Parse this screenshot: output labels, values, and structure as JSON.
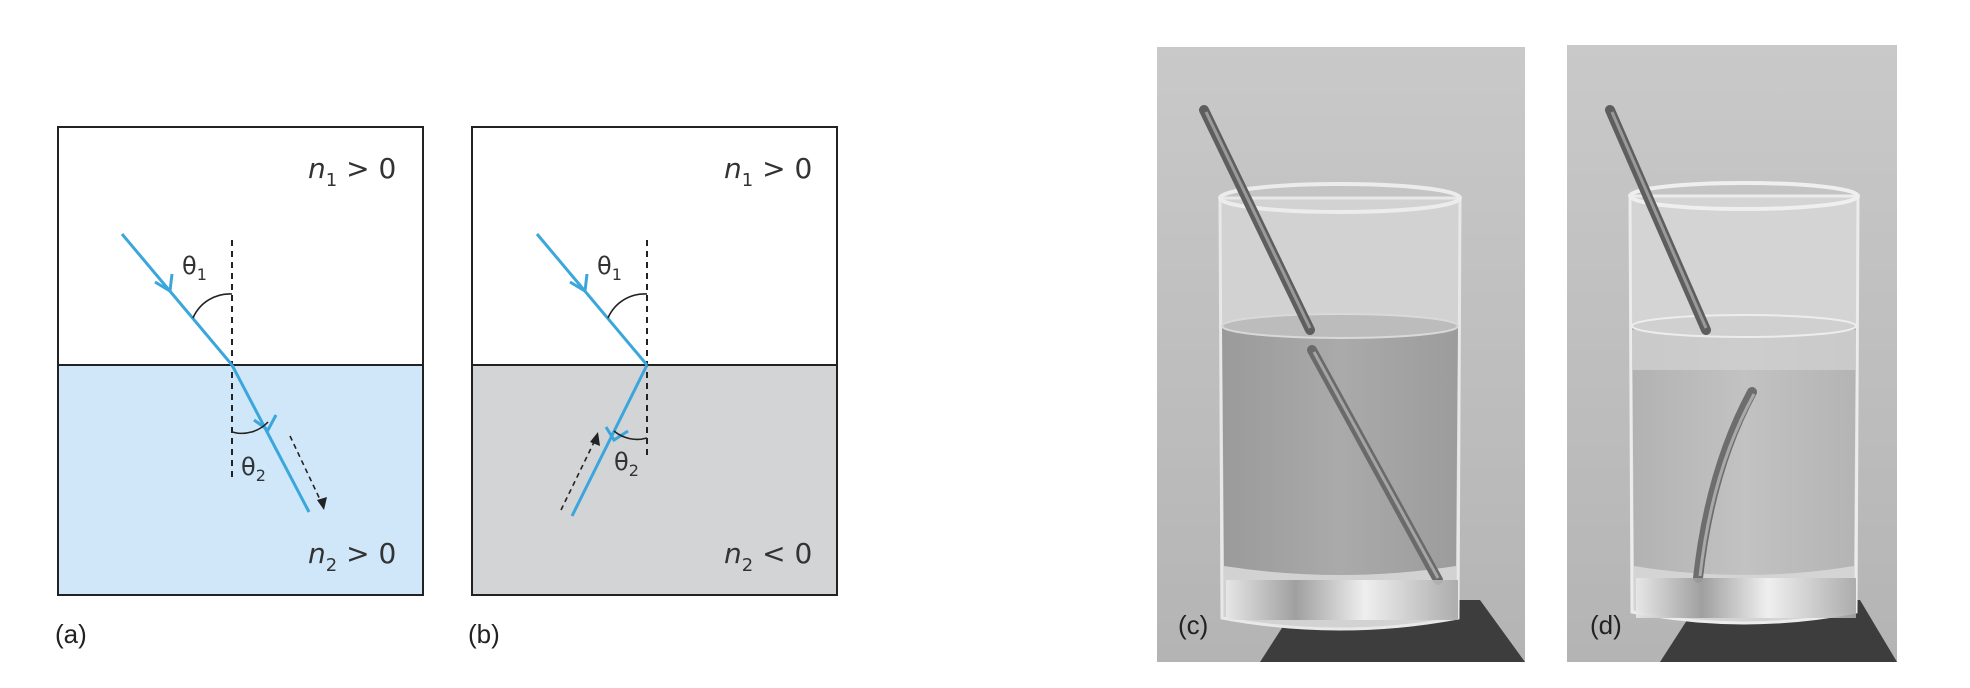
{
  "panels": {
    "a": {
      "label": "(a)",
      "n1_symbol": "n",
      "n1_sub": "1",
      "n1_relation": " > 0",
      "n2_symbol": "n",
      "n2_sub": "2",
      "n2_relation": " > 0",
      "theta1": "θ",
      "theta1_sub": "1",
      "theta2": "θ",
      "theta2_sub": "2"
    },
    "b": {
      "label": "(b)",
      "n1_symbol": "n",
      "n1_sub": "1",
      "n1_relation": " > 0",
      "n2_symbol": "n",
      "n2_sub": "2",
      "n2_relation": " < 0",
      "theta1": "θ",
      "theta1_sub": "1",
      "theta2": "θ",
      "theta2_sub": "2"
    },
    "c": {
      "label": "(c)"
    },
    "d": {
      "label": "(d)"
    }
  },
  "colors": {
    "ray": "#3aa6dc",
    "positive_medium": "#cfe7f8",
    "negative_medium": "#d3d4d6",
    "frame": "#222222"
  }
}
